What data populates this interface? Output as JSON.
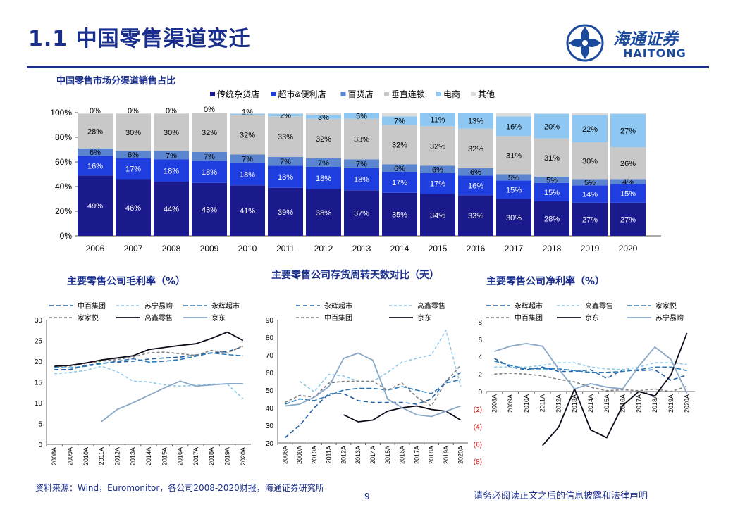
{
  "header": {
    "title": "1.1 中国零售渠道变迁",
    "logo_cn": "海通证券",
    "logo_en": "HAITONG"
  },
  "footer": {
    "source": "资料来源：Wind，Euromonitor，各公司2008-2020财报，海通证券研究所",
    "page_number": "9",
    "disclaimer": "请务必阅读正文之后的信息披露和法律声明"
  },
  "chart_data": [
    {
      "type": "bar",
      "stacked": true,
      "title": "中国零售市场分渠道销售占比",
      "categories": [
        "2006",
        "2007",
        "2008",
        "2009",
        "2010",
        "2011",
        "2012",
        "2013",
        "2014",
        "2015",
        "2016",
        "2017",
        "2018",
        "2019",
        "2020"
      ],
      "y_ticks": [
        "0%",
        "20%",
        "40%",
        "60%",
        "80%",
        "100%"
      ],
      "ylim": [
        0,
        100
      ],
      "legend_position": "top",
      "series": [
        {
          "name": "传统杂货店",
          "color": "#1a1a8c",
          "label_color": "#ffffff",
          "values": [
            49,
            46,
            44,
            43,
            41,
            39,
            38,
            37,
            35,
            34,
            33,
            30,
            28,
            27,
            27
          ]
        },
        {
          "name": "超市&便利店",
          "color": "#1f3ee0",
          "label_color": "#ffffff",
          "values": [
            16,
            17,
            18,
            18,
            18,
            18,
            18,
            18,
            17,
            17,
            16,
            15,
            15,
            14,
            15
          ]
        },
        {
          "name": "百货店",
          "color": "#5b86cf",
          "label_color": "#000000",
          "values": [
            6,
            6,
            7,
            7,
            7,
            7,
            7,
            7,
            6,
            6,
            6,
            5,
            5,
            5,
            4
          ]
        },
        {
          "name": "垂直连锁",
          "color": "#c8c8c8",
          "label_color": "#000000",
          "values": [
            28,
            30,
            30,
            32,
            32,
            33,
            32,
            33,
            32,
            32,
            32,
            31,
            31,
            30,
            26
          ]
        },
        {
          "name": "电商",
          "color": "#8ec8f2",
          "label_color": "#000000",
          "values": [
            0,
            0,
            0,
            0,
            1,
            2,
            3,
            5,
            7,
            11,
            13,
            16,
            20,
            22,
            27
          ]
        },
        {
          "name": "其他",
          "color": "#dcdcdc",
          "label_color": "#000000",
          "values": [
            1,
            1,
            1,
            0,
            1,
            1,
            2,
            0,
            3,
            0,
            0,
            3,
            1,
            2,
            1
          ]
        }
      ],
      "labels": [
        [
          "49%",
          "46%",
          "44%",
          "43%",
          "41%",
          "39%",
          "38%",
          "37%",
          "35%",
          "34%",
          "33%",
          "30%",
          "28%",
          "27%",
          "27%"
        ],
        [
          "16%",
          "17%",
          "18%",
          "18%",
          "18%",
          "18%",
          "18%",
          "18%",
          "17%",
          "17%",
          "16%",
          "15%",
          "15%",
          "14%",
          "15%"
        ],
        [
          "6%",
          "6%",
          "7%",
          "7%",
          "7%",
          "7%",
          "7%",
          "7%",
          "6%",
          "6%",
          "6%",
          "5%",
          "5%",
          "5%",
          "4%"
        ],
        [
          "28%",
          "30%",
          "30%",
          "32%",
          "32%",
          "33%",
          "32%",
          "33%",
          "32%",
          "32%",
          "32%",
          "31%",
          "31%",
          "30%",
          "26%"
        ],
        [
          "0%",
          "0%",
          "0%",
          "0%",
          "1%",
          "2%",
          "3%",
          "5%",
          "7%",
          "11%",
          "13%",
          "16%",
          "20%",
          "22%",
          "27%"
        ],
        null
      ]
    },
    {
      "type": "line",
      "title": "主要零售公司毛利率（%）",
      "categories": [
        "2008A",
        "2009A",
        "2010A",
        "2011A",
        "2012A",
        "2013A",
        "2014A",
        "2015A",
        "2016A",
        "2017A",
        "2018A",
        "2019A",
        "2020A"
      ],
      "y_ticks": [
        "0",
        "5",
        "10",
        "15",
        "20",
        "25",
        "30"
      ],
      "ylim": [
        0,
        30
      ],
      "series": [
        {
          "name": "中百集团",
          "color": "#1f5fa8",
          "dash": "6,4",
          "width": 1.6,
          "values": [
            18,
            18,
            19,
            19.5,
            19.8,
            20,
            20.5,
            20.8,
            21,
            21.5,
            22,
            22.3,
            23.5
          ]
        },
        {
          "name": "苏宁易购",
          "color": "#8ec8e8",
          "dash": "4,3",
          "width": 1.6,
          "values": [
            17,
            17.3,
            17.8,
            18.8,
            17.5,
            15.2,
            15,
            14.3,
            14,
            14.2,
            14.5,
            14.5,
            11
          ]
        },
        {
          "name": "永辉超市",
          "color": "#2a7ab8",
          "dash": "7,3",
          "width": 1.6,
          "values": [
            18.5,
            18.4,
            18.8,
            19.4,
            20,
            20.6,
            19.8,
            20,
            20.4,
            21.2,
            22,
            21.6,
            21.3
          ]
        },
        {
          "name": "家家悦",
          "color": "#808080",
          "dash": "4,3",
          "width": 1.6,
          "values": [
            18.8,
            18.8,
            19.5,
            20,
            20.4,
            21,
            22,
            22.2,
            21.8,
            21.4,
            22.6,
            22,
            23.7
          ]
        },
        {
          "name": "高鑫零售",
          "color": "#0a0a1a",
          "dash": "",
          "width": 1.8,
          "values": [
            18.8,
            19,
            19.6,
            20.3,
            20.8,
            21.3,
            22.8,
            23.3,
            23.8,
            24.2,
            25.5,
            27,
            25
          ]
        },
        {
          "name": "京东",
          "color": "#8aa8c8",
          "dash": "",
          "width": 1.8,
          "values": [
            null,
            null,
            null,
            5.5,
            8.4,
            10,
            11.8,
            13.6,
            15.2,
            14,
            14.3,
            14.6,
            14.6
          ]
        }
      ]
    },
    {
      "type": "line",
      "title": "主要零售公司存货周转天数对比（天）",
      "categories": [
        "2008A",
        "2009A",
        "2010A",
        "2011A",
        "2012A",
        "2013A",
        "2014A",
        "2015A",
        "2016A",
        "2017A",
        "2018A",
        "2019A",
        "2020A"
      ],
      "y_ticks": [
        "20",
        "30",
        "40",
        "50",
        "60",
        "70",
        "80",
        "90"
      ],
      "ylim": [
        20,
        90
      ],
      "series": [
        {
          "name": "永辉超市",
          "color": "#1f5fa8",
          "dash": "6,4",
          "width": 1.6,
          "values": [
            23,
            30,
            40,
            48,
            48,
            44,
            43,
            43,
            43,
            42,
            45,
            55,
            60
          ]
        },
        {
          "name": "高鑫零售",
          "color": "#8ec8e8",
          "dash": "4,3",
          "width": 1.6,
          "values": [
            null,
            55,
            49,
            59,
            58,
            55,
            55,
            60,
            66,
            68,
            70,
            84,
            52
          ]
        },
        {
          "name": "家家悦",
          "color": "#2a7ab8",
          "dash": "7,3",
          "width": 1.6,
          "values": [
            42,
            45,
            44,
            47,
            50,
            51,
            51,
            50,
            52,
            50,
            48,
            54,
            56
          ]
        },
        {
          "name": "中百集团",
          "color": "#808080",
          "dash": "4,3",
          "width": 1.6,
          "values": [
            43,
            47,
            46,
            54,
            55,
            55,
            55,
            50,
            54,
            46,
            41,
            55,
            64
          ]
        },
        {
          "name": "京东",
          "color": "#0a0a1a",
          "dash": "",
          "width": 1.8,
          "values": [
            null,
            null,
            null,
            null,
            36,
            32,
            33,
            38,
            40,
            41,
            39,
            38,
            33
          ]
        },
        {
          "name": "苏宁易购",
          "color": "#8aa8c8",
          "dash": "",
          "width": 1.8,
          "values": [
            41,
            42,
            46,
            52,
            68,
            71,
            67,
            45,
            40,
            36,
            35,
            38,
            41
          ]
        }
      ]
    },
    {
      "type": "line",
      "title": "主要零售公司净利率（%）",
      "categories": [
        "2008A",
        "2009A",
        "2010A",
        "2011A",
        "2012A",
        "2013A",
        "2014A",
        "2015A",
        "2016A",
        "2017A",
        "2018A",
        "2019A",
        "2020A"
      ],
      "y_ticks": [
        "8",
        "6",
        "4",
        "2",
        "0",
        "(2)",
        "(4)",
        "(6)",
        "(8)"
      ],
      "ylim": [
        -8,
        8
      ],
      "series": [
        {
          "name": "永辉超市",
          "color": "#1f5fa8",
          "dash": "6,4",
          "width": 1.6,
          "values": [
            3.8,
            2.8,
            2.5,
            2.8,
            2.3,
            2.3,
            2.5,
            1.5,
            2.5,
            2.4,
            2.5,
            1.3,
            1.9
          ]
        },
        {
          "name": "高鑫零售",
          "color": "#8ec8e8",
          "dash": "4,3",
          "width": 1.6,
          "values": [
            2.8,
            2.8,
            2.8,
            3,
            3.3,
            3.3,
            2.8,
            2.6,
            2.5,
            2.8,
            3.3,
            3.3,
            3.1
          ]
        },
        {
          "name": "家家悦",
          "color": "#2a7ab8",
          "dash": "7,3",
          "width": 1.6,
          "values": [
            3.5,
            3,
            2.6,
            2.6,
            2.6,
            2.4,
            2.2,
            2.2,
            2.3,
            2.5,
            2.8,
            2.8,
            2.4
          ]
        },
        {
          "name": "中百集团",
          "color": "#808080",
          "dash": "4,3",
          "width": 1.6,
          "values": [
            2,
            2.1,
            2,
            1.8,
            1.4,
            1.1,
            0.5,
            0.1,
            0.2,
            0.1,
            0.3,
            0,
            0.6
          ]
        },
        {
          "name": "京东",
          "color": "#0a0a1a",
          "dash": "",
          "width": 1.8,
          "values": [
            null,
            null,
            null,
            -6.2,
            -4.1,
            0.3,
            -4.4,
            -5.3,
            -1.6,
            0,
            -0.5,
            1.9,
            6.7
          ]
        },
        {
          "name": "苏宁易购",
          "color": "#8aa8c8",
          "dash": "",
          "width": 1.8,
          "values": [
            4.6,
            5.2,
            5.5,
            5.2,
            2.6,
            0.3,
            0.9,
            0.5,
            0.3,
            2.9,
            5.1,
            3.7,
            -0.2
          ]
        }
      ]
    }
  ]
}
